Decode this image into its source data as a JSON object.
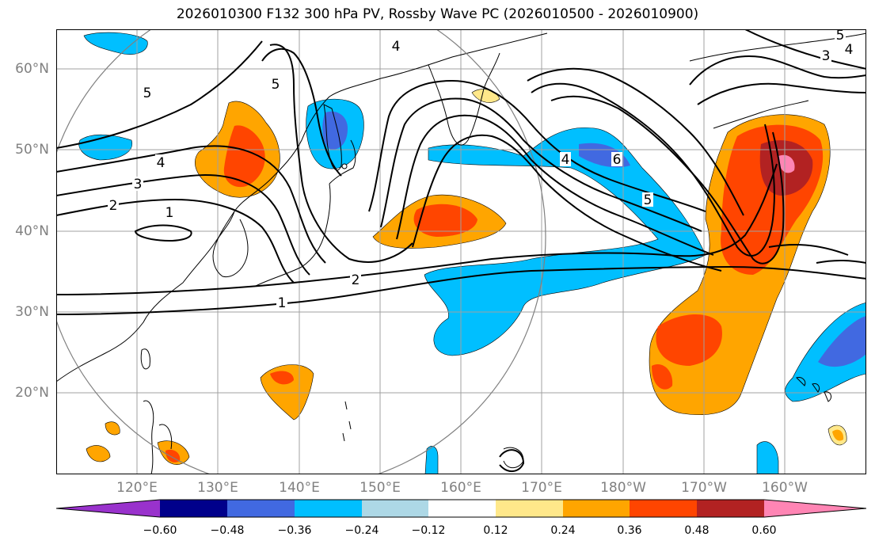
{
  "title": "2026010300 F132 300 hPa PV, Rossby Wave PC (2026010500 - 2026010900)",
  "lat_labels": [
    "60°N",
    "50°N",
    "40°N",
    "30°N",
    "20°N"
  ],
  "lon_labels": [
    "120°E",
    "130°E",
    "140°E",
    "150°E",
    "160°E",
    "170°E",
    "180°W",
    "170°W",
    "160°W"
  ],
  "contour_labels": [
    "1",
    "2",
    "3",
    "4",
    "5",
    "4",
    "5",
    "1",
    "2",
    "4",
    "6",
    "5",
    "5",
    "4",
    "3"
  ],
  "colorbar": {
    "ticks": [
      "−0.60",
      "−0.48",
      "−0.36",
      "−0.24",
      "−0.12",
      "0.12",
      "0.24",
      "0.36",
      "0.48",
      "0.60"
    ],
    "colors": [
      "#9932cc",
      "#00008b",
      "#4169e1",
      "#00bfff",
      "#add8e6",
      "#ffffff",
      "#ffe88a",
      "#ffa500",
      "#ff4500",
      "#b22222",
      "#ff85b4"
    ]
  },
  "map_colors": {
    "grid": "#a0a0a0",
    "coast": "#000000",
    "contour": "#000000",
    "circle": "#808080"
  }
}
